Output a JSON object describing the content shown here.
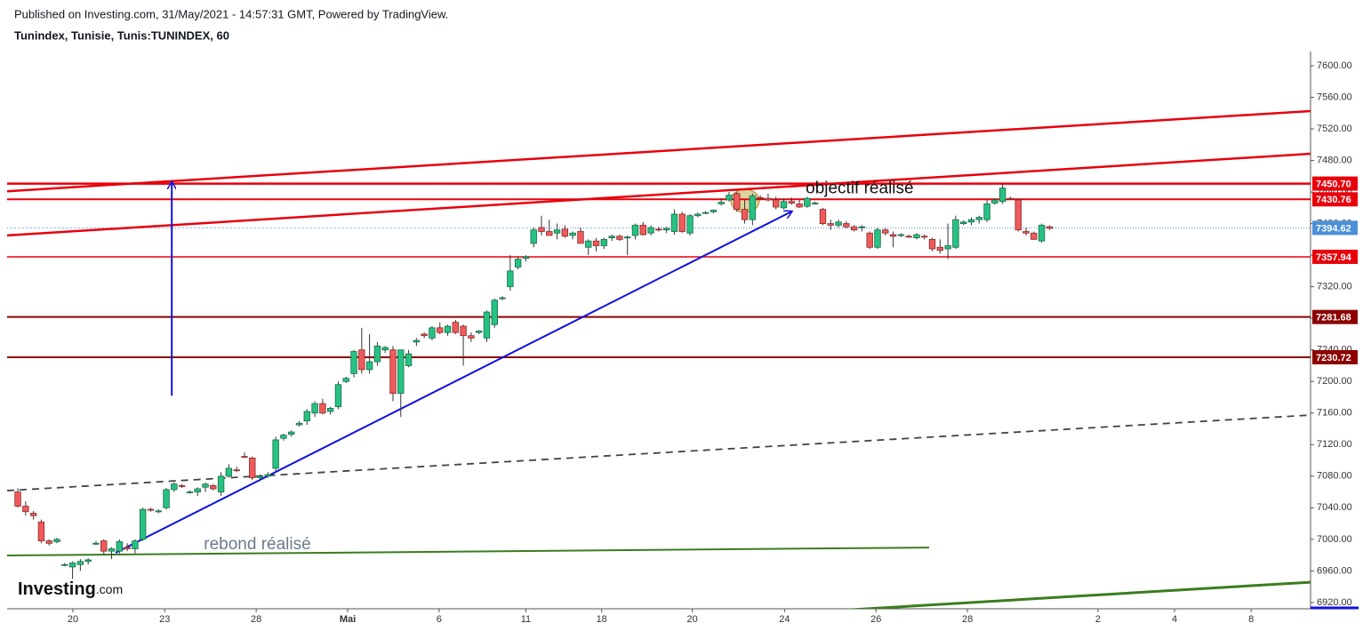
{
  "chart_data": {
    "type": "candlestick",
    "published": "Published on Investing.com, 31/May/2021 - 14:57:31 GMT, Powered by TradingView.",
    "title": "Tunindex, Tunisie, Tunis:TUNINDEX, 60",
    "logo": {
      "brand": "Investing",
      "suffix": ".com"
    },
    "up_color": "#26c281",
    "down_color": "#ef5b5b",
    "candles": [
      [
        7060,
        7065,
        7040,
        7042
      ],
      [
        7042,
        7048,
        7030,
        7035
      ],
      [
        7033,
        7036,
        7025,
        7030
      ],
      [
        7022,
        7025,
        6995,
        6998
      ],
      [
        6998,
        7000,
        6992,
        6995
      ],
      [
        6997,
        7002,
        6995,
        7000
      ],
      [
        6968,
        6970,
        6966,
        6968
      ],
      [
        6965,
        6972,
        6950,
        6970
      ],
      [
        6968,
        6975,
        6960,
        6972
      ],
      [
        6972,
        6976,
        6968,
        6974
      ],
      [
        6995,
        6998,
        6993,
        6995
      ],
      [
        6998,
        7000,
        6980,
        6985
      ],
      [
        6985,
        6990,
        6975,
        6988
      ],
      [
        6985,
        7000,
        6982,
        6997
      ],
      [
        6990,
        6995,
        6985,
        6988
      ],
      [
        6988,
        7000,
        6982,
        6998
      ],
      [
        7000,
        7040,
        6998,
        7038
      ],
      [
        7038,
        7040,
        7035,
        7037
      ],
      [
        7035,
        7038,
        7033,
        7036
      ],
      [
        7040,
        7065,
        7038,
        7063
      ],
      [
        7063,
        7072,
        7060,
        7070
      ],
      [
        7068,
        7070,
        7065,
        7067
      ],
      [
        7060,
        7062,
        7058,
        7060
      ],
      [
        7060,
        7066,
        7055,
        7064
      ],
      [
        7066,
        7072,
        7060,
        7070
      ],
      [
        7068,
        7070,
        7062,
        7064
      ],
      [
        7060,
        7085,
        7055,
        7080
      ],
      [
        7080,
        7095,
        7078,
        7090
      ],
      [
        7088,
        7092,
        7085,
        7087
      ],
      [
        7105,
        7110,
        7103,
        7104
      ],
      [
        7103,
        7105,
        7075,
        7078
      ],
      [
        7078,
        7082,
        7075,
        7080
      ],
      [
        7080,
        7085,
        7078,
        7082
      ],
      [
        7090,
        7130,
        7085,
        7126
      ],
      [
        7128,
        7134,
        7125,
        7132
      ],
      [
        7133,
        7138,
        7130,
        7136
      ],
      [
        7145,
        7150,
        7143,
        7147
      ],
      [
        7150,
        7165,
        7145,
        7162
      ],
      [
        7160,
        7175,
        7155,
        7172
      ],
      [
        7172,
        7178,
        7158,
        7160
      ],
      [
        7162,
        7168,
        7158,
        7166
      ],
      [
        7168,
        7200,
        7165,
        7196
      ],
      [
        7200,
        7206,
        7198,
        7204
      ],
      [
        7210,
        7240,
        7205,
        7238
      ],
      [
        7240,
        7268,
        7210,
        7215
      ],
      [
        7215,
        7260,
        7210,
        7225
      ],
      [
        7225,
        7250,
        7220,
        7245
      ],
      [
        7240,
        7245,
        7236,
        7243
      ],
      [
        7240,
        7245,
        7175,
        7185
      ],
      [
        7185,
        7240,
        7155,
        7240
      ],
      [
        7220,
        7240,
        7218,
        7235
      ],
      [
        7250,
        7255,
        7245,
        7252
      ],
      [
        7260,
        7262,
        7255,
        7258
      ],
      [
        7255,
        7270,
        7252,
        7268
      ],
      [
        7268,
        7275,
        7260,
        7262
      ],
      [
        7262,
        7272,
        7258,
        7270
      ],
      [
        7275,
        7278,
        7260,
        7262
      ],
      [
        7270,
        7272,
        7220,
        7258
      ],
      [
        7258,
        7262,
        7250,
        7255
      ],
      [
        7262,
        7265,
        7260,
        7264
      ],
      [
        7255,
        7290,
        7250,
        7288
      ],
      [
        7272,
        7305,
        7268,
        7303
      ],
      [
        7305,
        7308,
        7303,
        7306
      ],
      [
        7320,
        7360,
        7315,
        7340
      ],
      [
        7345,
        7358,
        7342,
        7355
      ],
      [
        7356,
        7360,
        7352,
        7358
      ],
      [
        7375,
        7395,
        7370,
        7392
      ],
      [
        7395,
        7410,
        7385,
        7390
      ],
      [
        7390,
        7405,
        7385,
        7385
      ],
      [
        7388,
        7400,
        7380,
        7392
      ],
      [
        7393,
        7398,
        7382,
        7384
      ],
      [
        7385,
        7390,
        7380,
        7388
      ],
      [
        7390,
        7395,
        7375,
        7375
      ],
      [
        7370,
        7380,
        7360,
        7378
      ],
      [
        7378,
        7382,
        7365,
        7372
      ],
      [
        7372,
        7382,
        7368,
        7380
      ],
      [
        7382,
        7386,
        7378,
        7384
      ],
      [
        7384,
        7386,
        7378,
        7380
      ],
      [
        7382,
        7385,
        7360,
        7383
      ],
      [
        7385,
        7400,
        7380,
        7398
      ],
      [
        7398,
        7402,
        7385,
        7386
      ],
      [
        7388,
        7398,
        7385,
        7395
      ],
      [
        7393,
        7396,
        7390,
        7392
      ],
      [
        7392,
        7396,
        7388,
        7394
      ],
      [
        7390,
        7418,
        7386,
        7412
      ],
      [
        7412,
        7415,
        7388,
        7390
      ],
      [
        7388,
        7412,
        7385,
        7410
      ],
      [
        7410,
        7414,
        7408,
        7412
      ],
      [
        7413,
        7416,
        7412,
        7414
      ],
      [
        7415,
        7418,
        7413,
        7417
      ],
      [
        7425,
        7432,
        7423,
        7427
      ],
      [
        7430,
        7440,
        7428,
        7436
      ],
      [
        7438,
        7440,
        7415,
        7418
      ],
      [
        7418,
        7430,
        7400,
        7405
      ],
      [
        7405,
        7438,
        7398,
        7435
      ],
      [
        7433,
        7436,
        7430,
        7432
      ],
      [
        7432,
        7438,
        7428,
        7430
      ],
      [
        7430,
        7434,
        7418,
        7421
      ],
      [
        7420,
        7432,
        7418,
        7428
      ],
      [
        7428,
        7433,
        7424,
        7426
      ],
      [
        7425,
        7430,
        7420,
        7421
      ],
      [
        7422,
        7434,
        7420,
        7432
      ],
      [
        7425,
        7428,
        7424,
        7426
      ],
      [
        7418,
        7420,
        7398,
        7400
      ],
      [
        7400,
        7405,
        7392,
        7398
      ],
      [
        7398,
        7405,
        7395,
        7402
      ],
      [
        7400,
        7403,
        7394,
        7396
      ],
      [
        7396,
        7398,
        7390,
        7392
      ],
      [
        7395,
        7398,
        7390,
        7396
      ],
      [
        7388,
        7390,
        7368,
        7370
      ],
      [
        7370,
        7395,
        7368,
        7392
      ],
      [
        7392,
        7394,
        7385,
        7388
      ],
      [
        7386,
        7390,
        7370,
        7384
      ],
      [
        7385,
        7388,
        7383,
        7386
      ],
      [
        7384,
        7386,
        7382,
        7383
      ],
      [
        7382,
        7388,
        7380,
        7386
      ],
      [
        7384,
        7386,
        7380,
        7383
      ],
      [
        7380,
        7382,
        7365,
        7368
      ],
      [
        7370,
        7380,
        7362,
        7366
      ],
      [
        7368,
        7400,
        7355,
        7372
      ],
      [
        7370,
        7410,
        7368,
        7405
      ],
      [
        7400,
        7404,
        7398,
        7402
      ],
      [
        7402,
        7408,
        7398,
        7405
      ],
      [
        7405,
        7410,
        7400,
        7408
      ],
      [
        7405,
        7430,
        7402,
        7425
      ],
      [
        7426,
        7432,
        7424,
        7430
      ],
      [
        7428,
        7450,
        7425,
        7445
      ],
      [
        7432,
        7434,
        7430,
        7431
      ],
      [
        7430,
        7432,
        7390,
        7392
      ],
      [
        7390,
        7395,
        7385,
        7388
      ],
      [
        7388,
        7390,
        7380,
        7380
      ],
      [
        7378,
        7400,
        7376,
        7398
      ],
      [
        7396,
        7398,
        7392,
        7394
      ]
    ],
    "xlim": [
      -1.37,
      165.4
    ],
    "xticks": [
      {
        "value": 7.05,
        "label": "20"
      },
      {
        "value": 18.8,
        "label": "23"
      },
      {
        "value": 30.5,
        "label": "28"
      },
      {
        "value": 42.2,
        "label": "Mai"
      },
      {
        "value": 53.9,
        "label": "6"
      },
      {
        "value": 65.0,
        "label": "11"
      },
      {
        "value": 74.7,
        "label": "18"
      },
      {
        "value": 86.3,
        "label": "20"
      },
      {
        "value": 98.1,
        "label": "24"
      },
      {
        "value": 109.8,
        "label": "26"
      },
      {
        "value": 121.5,
        "label": "28"
      },
      {
        "value": 138.2,
        "label": "2"
      },
      {
        "value": 148.0,
        "label": "4"
      },
      {
        "value": 157.8,
        "label": "8"
      }
    ],
    "ylim": [
      6912,
      7618
    ],
    "yticks": [
      {
        "value": 6920,
        "label": "6920.00"
      },
      {
        "value": 6960,
        "label": "6960.00"
      },
      {
        "value": 7000,
        "label": "7000.00"
      },
      {
        "value": 7040,
        "label": "7040.00"
      },
      {
        "value": 7080,
        "label": "7080.00"
      },
      {
        "value": 7120,
        "label": "7120.00"
      },
      {
        "value": 7160,
        "label": "7160.00"
      },
      {
        "value": 7200,
        "label": "7200.00"
      },
      {
        "value": 7240,
        "label": "7240.00"
      },
      {
        "value": 7280,
        "label": "7280.00"
      },
      {
        "value": 7320,
        "label": "7320.00"
      },
      {
        "value": 7360,
        "label": "7360.00"
      },
      {
        "value": 7400,
        "label": "7400.00"
      },
      {
        "value": 7440,
        "label": "7440.00"
      },
      {
        "value": 7480,
        "label": "7480.00"
      },
      {
        "value": 7520,
        "label": "7520.00"
      },
      {
        "value": 7560,
        "label": "7560.00"
      },
      {
        "value": 7600,
        "label": "7600.00"
      }
    ],
    "levels": [
      {
        "value": 7450.7,
        "label": "7450.70",
        "color": "#e8000b",
        "width": 2.5
      },
      {
        "value": 7430.76,
        "label": "7430.76",
        "color": "#e8000b",
        "width": 2
      },
      {
        "value": 7394.62,
        "label": "7394.62",
        "color": "#4a8fd8",
        "width": 1,
        "dash": true
      },
      {
        "value": 7357.94,
        "label": "7357.94",
        "color": "#e8000b",
        "width": 1.5
      },
      {
        "value": 7281.68,
        "label": "7281.68",
        "color": "#8b0000",
        "width": 2
      },
      {
        "value": 7230.72,
        "label": "7230.72",
        "color": "#8b0000",
        "width": 2
      }
    ],
    "trendlines": [
      {
        "x": [
          -1.37,
          165.4
        ],
        "y": [
          7441,
          7542.6
        ],
        "color": "#e8000b",
        "width": 2.5
      },
      {
        "x": [
          -1.37,
          165.4
        ],
        "y": [
          7385,
          7488.5
        ],
        "color": "#e8000b",
        "width": 2.5
      },
      {
        "x": [
          -1.37,
          165.4
        ],
        "y": [
          7061.7,
          7157.4
        ],
        "color": "#444444",
        "width": 1.8,
        "dash": true
      },
      {
        "x": [
          -1.37,
          116.6
        ],
        "y": [
          6979.5,
          6989.6
        ],
        "color": "#3a7d1e",
        "width": 2
      },
      {
        "x": [
          104.7,
          165.4
        ],
        "y": [
          6909.7,
          6945.7
        ],
        "color": "#3a7d1e",
        "width": 3
      },
      {
        "x": [
          12.5,
          99.0
        ],
        "y": [
          6982.9,
          7415.3
        ],
        "color": "#1010e0",
        "width": 2,
        "arrow": true
      },
      {
        "x": [
          19.7,
          19.7
        ],
        "y": [
          7182,
          7452.5
        ],
        "color": "#1010e0",
        "width": 2,
        "arrow": true
      }
    ],
    "annotations": [
      {
        "text": "objectif réalisé",
        "x": 100.8,
        "y": 7444,
        "color": "#111111"
      },
      {
        "text": "rebond réalisé",
        "x": 23.8,
        "y": 6993,
        "color": "#6b7b8c"
      }
    ]
  }
}
